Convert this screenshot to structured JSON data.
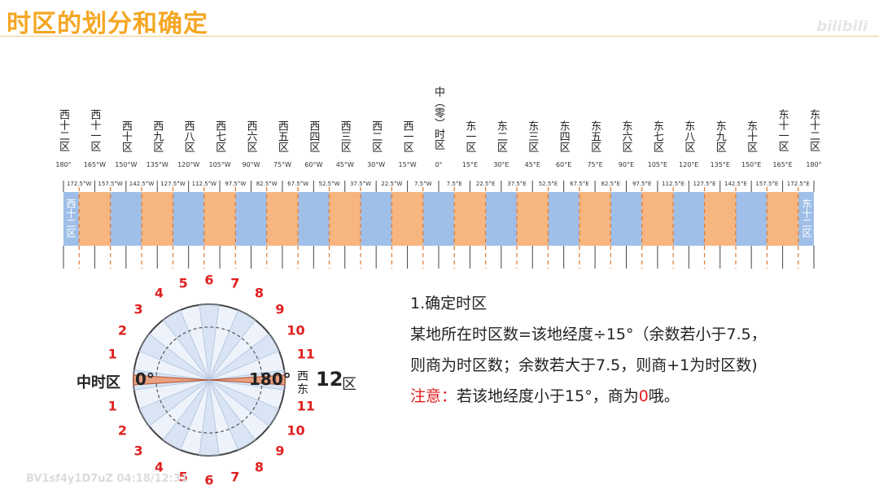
{
  "title": "时区的划分和确定",
  "watermark_top": "bilibili",
  "watermark_bottom": "BV1sf4y1D7uZ 04:18/12:31",
  "zones": [
    {
      "name": "西十二区",
      "deg": "180°"
    },
    {
      "name": "西十一区",
      "deg": "165°W"
    },
    {
      "name": "西十区",
      "deg": "150°W"
    },
    {
      "name": "西九区",
      "deg": "135°W"
    },
    {
      "name": "西八区",
      "deg": "120°W"
    },
    {
      "name": "西七区",
      "deg": "105°W"
    },
    {
      "name": "西六区",
      "deg": "90°W"
    },
    {
      "name": "西五区",
      "deg": "75°W"
    },
    {
      "name": "西四区",
      "deg": "60°W"
    },
    {
      "name": "西三区",
      "deg": "45°W"
    },
    {
      "name": "西二区",
      "deg": "30°W"
    },
    {
      "name": "西一区",
      "deg": "15°W"
    },
    {
      "name": "中（零）时区",
      "deg": "0°"
    },
    {
      "name": "东一区",
      "deg": "15°E"
    },
    {
      "name": "东二区",
      "deg": "30°E"
    },
    {
      "name": "东三区",
      "deg": "45°E"
    },
    {
      "name": "东四区",
      "deg": "60°E"
    },
    {
      "name": "东五区",
      "deg": "75°E"
    },
    {
      "name": "东六区",
      "deg": "90°E"
    },
    {
      "name": "东七区",
      "deg": "105°E"
    },
    {
      "name": "东八区",
      "deg": "120°E"
    },
    {
      "name": "东九区",
      "deg": "135°E"
    },
    {
      "name": "东十区",
      "deg": "150°E"
    },
    {
      "name": "东十一区",
      "deg": "165°E"
    },
    {
      "name": "东十二区",
      "deg": "180°"
    }
  ],
  "boundaries": [
    "172.5°W",
    "157.5°W",
    "142.5°W",
    "127.5°W",
    "112.5°W",
    "97.5°W",
    "82.5°W",
    "67.5°W",
    "52.5°W",
    "37.5°W",
    "22.5°W",
    "7.5°W",
    "7.5°E",
    "22.5°E",
    "37.5°E",
    "52.5°E",
    "67.5°E",
    "82.5°E",
    "97.5°E",
    "112.5°E",
    "127.5°E",
    "142.5°E",
    "157.5°E",
    "172.5°E"
  ],
  "strip_end_left": "西十二区",
  "strip_end_right": "东十二区",
  "colors": {
    "blue": "#9fbfe8",
    "orange": "#f7b57f",
    "red": "#e02020",
    "title": "#f5a623"
  },
  "wheel": {
    "upper_numbers": [
      "1",
      "2",
      "3",
      "4",
      "5",
      "6",
      "7",
      "8",
      "9",
      "10",
      "11"
    ],
    "lower_numbers": [
      "1",
      "2",
      "3",
      "4",
      "5",
      "6",
      "7",
      "8",
      "9",
      "10",
      "11"
    ],
    "left_label": "中时区",
    "zero_label": "0°",
    "right_deg": "180°",
    "west_char": "西",
    "east_char": "东",
    "twelve": "12",
    "twelve_suffix": "区"
  },
  "info": {
    "heading": "1.确定时区",
    "line1": "某地所在时区数=该地经度÷15°（余数若小于7.5，",
    "line2": "则商为时区数；余数若大于7.5，则商+1为时区数)",
    "note_label": "注意：",
    "note_text": "若该地经度小于15°，商为",
    "note_zero": "0",
    "note_end": "哦。"
  }
}
